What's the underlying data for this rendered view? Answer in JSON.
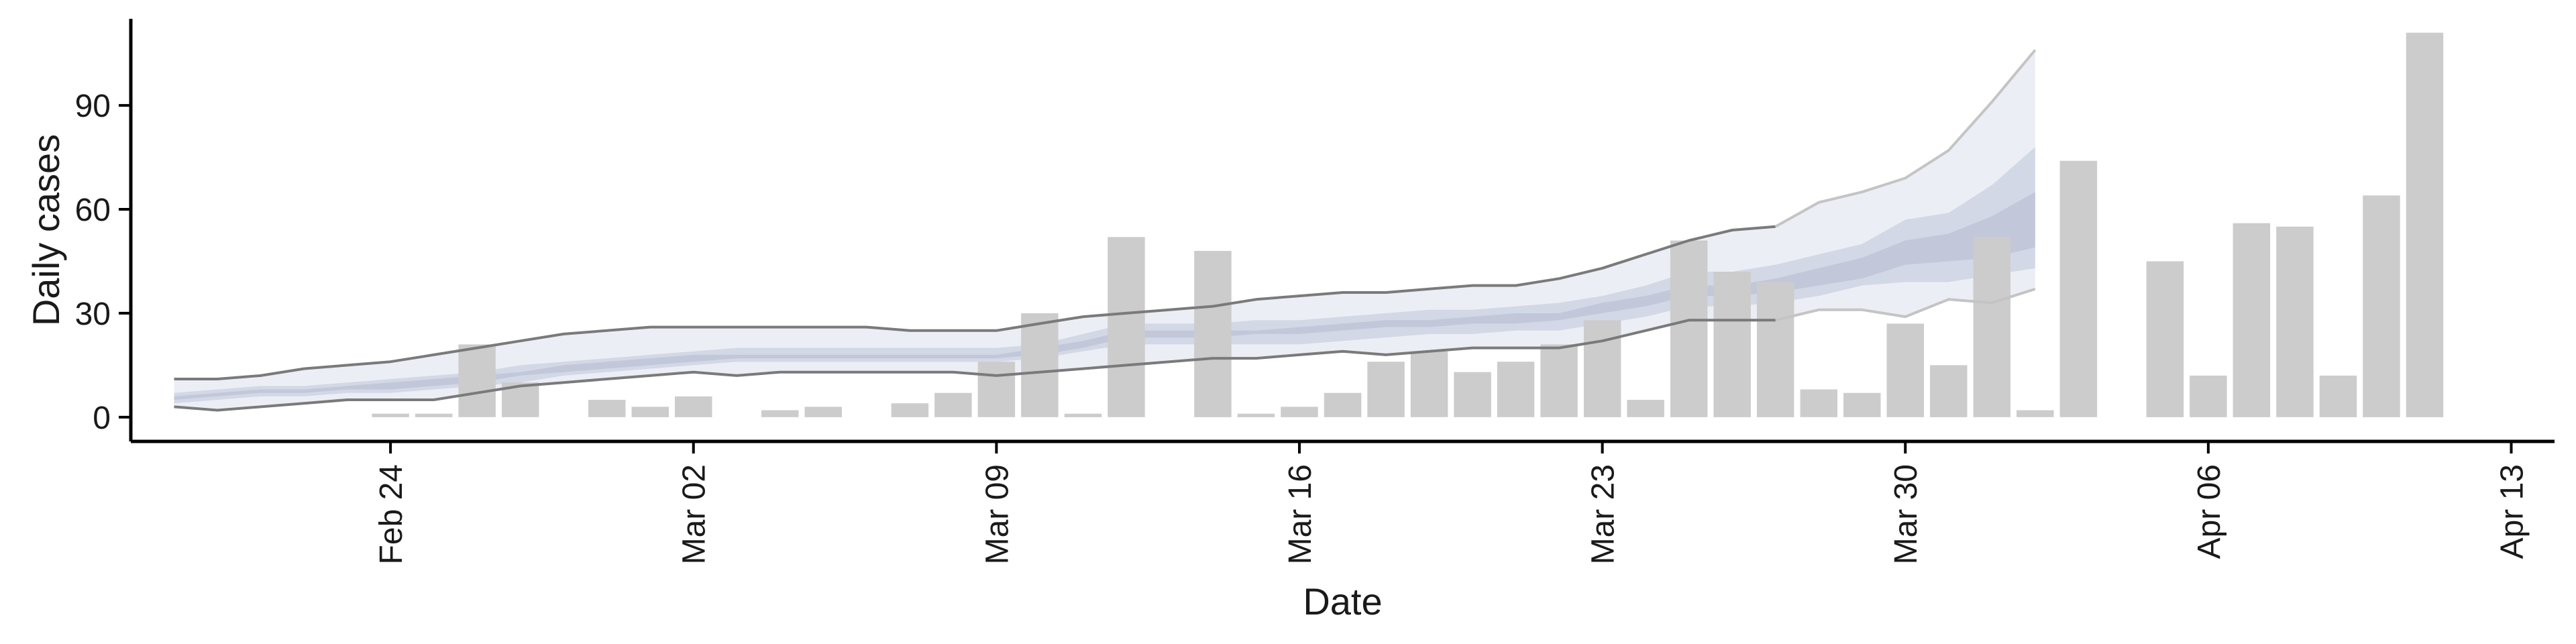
{
  "chart_data": {
    "type": "bar",
    "title": "",
    "xlabel": "Date",
    "ylabel": "Daily cases",
    "x_axis": {
      "start": "2020-02-18",
      "end": "2020-04-14",
      "ticks": [
        {
          "date": "2020-02-24",
          "label": "Feb 24"
        },
        {
          "date": "2020-03-02",
          "label": "Mar 02"
        },
        {
          "date": "2020-03-09",
          "label": "Mar 09"
        },
        {
          "date": "2020-03-16",
          "label": "Mar 16"
        },
        {
          "date": "2020-03-23",
          "label": "Mar 23"
        },
        {
          "date": "2020-03-30",
          "label": "Mar 30"
        },
        {
          "date": "2020-04-06",
          "label": "Apr 06"
        },
        {
          "date": "2020-04-13",
          "label": "Apr 13"
        }
      ]
    },
    "y_axis": {
      "ylim": [
        -7,
        115
      ],
      "ticks": [
        0,
        30,
        60,
        90
      ]
    },
    "grid": false,
    "series": [
      {
        "kind": "bar",
        "color": "#cccccc",
        "x": [
          "2020-02-24",
          "2020-02-25",
          "2020-02-26",
          "2020-02-27",
          "2020-02-29",
          "2020-03-01",
          "2020-03-02",
          "2020-03-04",
          "2020-03-05",
          "2020-03-07",
          "2020-03-08",
          "2020-03-09",
          "2020-03-10",
          "2020-03-11",
          "2020-03-12",
          "2020-03-14",
          "2020-03-15",
          "2020-03-16",
          "2020-03-17",
          "2020-03-18",
          "2020-03-19",
          "2020-03-20",
          "2020-03-21",
          "2020-03-22",
          "2020-03-23",
          "2020-03-24",
          "2020-03-25",
          "2020-03-26",
          "2020-03-27",
          "2020-03-28",
          "2020-03-29",
          "2020-03-30",
          "2020-03-31",
          "2020-04-01",
          "2020-04-02",
          "2020-04-03",
          "2020-04-05",
          "2020-04-06",
          "2020-04-07",
          "2020-04-08",
          "2020-04-09",
          "2020-04-10",
          "2020-04-11"
        ],
        "y": [
          1,
          1,
          21,
          10,
          5,
          3,
          6,
          2,
          3,
          4,
          7,
          16,
          30,
          1,
          52,
          48,
          1,
          3,
          7,
          16,
          19,
          13,
          16,
          21,
          28,
          5,
          51,
          42,
          39,
          8,
          7,
          27,
          15,
          52,
          2,
          74,
          45,
          12,
          56,
          55,
          12,
          64,
          111
        ]
      },
      {
        "kind": "band",
        "color": "#eceef5",
        "x": [
          "2020-02-19",
          "2020-02-20",
          "2020-02-21",
          "2020-02-22",
          "2020-02-23",
          "2020-02-24",
          "2020-02-25",
          "2020-02-26",
          "2020-02-27",
          "2020-02-28",
          "2020-02-29",
          "2020-03-01",
          "2020-03-02",
          "2020-03-03",
          "2020-03-04",
          "2020-03-05",
          "2020-03-06",
          "2020-03-07",
          "2020-03-08",
          "2020-03-09",
          "2020-03-10",
          "2020-03-11",
          "2020-03-12",
          "2020-03-13",
          "2020-03-14",
          "2020-03-15",
          "2020-03-16",
          "2020-03-17",
          "2020-03-18",
          "2020-03-19",
          "2020-03-20",
          "2020-03-21",
          "2020-03-22",
          "2020-03-23",
          "2020-03-24",
          "2020-03-25",
          "2020-03-26",
          "2020-03-27",
          "2020-03-28",
          "2020-03-29",
          "2020-03-30",
          "2020-03-31",
          "2020-04-01",
          "2020-04-02"
        ],
        "lower": [
          3,
          2,
          3,
          4,
          5,
          5,
          5,
          7,
          9,
          10,
          11,
          12,
          13,
          12,
          13,
          13,
          13,
          13,
          13,
          12,
          13,
          14,
          15,
          16,
          17,
          17,
          18,
          19,
          18,
          19,
          20,
          20,
          20,
          22,
          25,
          28,
          28,
          28,
          31,
          31,
          29,
          34,
          33,
          37
        ],
        "upper": [
          11,
          11,
          12,
          14,
          15,
          16,
          18,
          20,
          22,
          24,
          25,
          26,
          26,
          26,
          26,
          26,
          26,
          25,
          25,
          25,
          27,
          29,
          30,
          31,
          32,
          34,
          35,
          36,
          36,
          37,
          38,
          38,
          40,
          43,
          47,
          51,
          54,
          55,
          62,
          65,
          69,
          77,
          91,
          106
        ]
      },
      {
        "kind": "band",
        "color": "#d3d8e6",
        "x": [
          "2020-02-19",
          "2020-02-20",
          "2020-02-21",
          "2020-02-22",
          "2020-02-23",
          "2020-02-24",
          "2020-02-25",
          "2020-02-26",
          "2020-02-27",
          "2020-02-28",
          "2020-02-29",
          "2020-03-01",
          "2020-03-02",
          "2020-03-03",
          "2020-03-04",
          "2020-03-05",
          "2020-03-06",
          "2020-03-07",
          "2020-03-08",
          "2020-03-09",
          "2020-03-10",
          "2020-03-11",
          "2020-03-12",
          "2020-03-13",
          "2020-03-14",
          "2020-03-15",
          "2020-03-16",
          "2020-03-17",
          "2020-03-18",
          "2020-03-19",
          "2020-03-20",
          "2020-03-21",
          "2020-03-22",
          "2020-03-23",
          "2020-03-24",
          "2020-03-25",
          "2020-03-26",
          "2020-03-27",
          "2020-03-28",
          "2020-03-29",
          "2020-03-30",
          "2020-03-31",
          "2020-04-01",
          "2020-04-02"
        ],
        "lower": [
          4,
          5,
          6,
          6,
          7,
          7,
          8,
          9,
          10,
          12,
          13,
          14,
          15,
          16,
          16,
          16,
          16,
          16,
          16,
          16,
          17,
          19,
          21,
          21,
          21,
          21,
          21,
          22,
          23,
          24,
          24,
          25,
          25,
          27,
          29,
          32,
          32,
          33,
          35,
          38,
          39,
          39,
          41,
          43
        ],
        "upper": [
          7,
          8,
          9,
          9,
          10,
          11,
          12,
          13,
          15,
          16,
          17,
          18,
          19,
          20,
          20,
          20,
          20,
          20,
          20,
          20,
          21,
          24,
          27,
          27,
          27,
          28,
          28,
          29,
          30,
          31,
          31,
          32,
          33,
          35,
          38,
          42,
          42,
          44,
          47,
          50,
          57,
          59,
          67,
          78
        ]
      },
      {
        "kind": "band",
        "color": "#c2c8da",
        "x": [
          "2020-02-19",
          "2020-02-20",
          "2020-02-21",
          "2020-02-22",
          "2020-02-23",
          "2020-02-24",
          "2020-02-25",
          "2020-02-26",
          "2020-02-27",
          "2020-02-28",
          "2020-02-29",
          "2020-03-01",
          "2020-03-02",
          "2020-03-03",
          "2020-03-04",
          "2020-03-05",
          "2020-03-06",
          "2020-03-07",
          "2020-03-08",
          "2020-03-09",
          "2020-03-10",
          "2020-03-11",
          "2020-03-12",
          "2020-03-13",
          "2020-03-14",
          "2020-03-15",
          "2020-03-16",
          "2020-03-17",
          "2020-03-18",
          "2020-03-19",
          "2020-03-20",
          "2020-03-21",
          "2020-03-22",
          "2020-03-23",
          "2020-03-24",
          "2020-03-25",
          "2020-03-26",
          "2020-03-27",
          "2020-03-28",
          "2020-03-29",
          "2020-03-30",
          "2020-03-31",
          "2020-04-01",
          "2020-04-02"
        ],
        "lower": [
          5,
          6,
          7,
          7,
          8,
          8,
          9,
          10,
          12,
          13,
          14,
          15,
          16,
          17,
          17,
          17,
          17,
          17,
          17,
          17,
          18,
          20,
          23,
          23,
          23,
          24,
          24,
          25,
          26,
          26,
          27,
          27,
          28,
          30,
          32,
          35,
          35,
          36,
          38,
          40,
          44,
          45,
          46,
          49
        ],
        "upper": [
          6,
          7,
          8,
          8,
          9,
          10,
          11,
          12,
          13,
          15,
          16,
          17,
          18,
          18,
          18,
          18,
          18,
          18,
          18,
          18,
          20,
          22,
          25,
          25,
          25,
          25,
          26,
          27,
          28,
          28,
          29,
          30,
          30,
          33,
          35,
          38,
          38,
          40,
          43,
          46,
          51,
          53,
          58,
          65
        ]
      },
      {
        "kind": "line",
        "color": "#7a7a7a",
        "x": [
          "2020-02-19",
          "2020-02-20",
          "2020-02-21",
          "2020-02-22",
          "2020-02-23",
          "2020-02-24",
          "2020-02-25",
          "2020-02-26",
          "2020-02-27",
          "2020-02-28",
          "2020-02-29",
          "2020-03-01",
          "2020-03-02",
          "2020-03-03",
          "2020-03-04",
          "2020-03-05",
          "2020-03-06",
          "2020-03-07",
          "2020-03-08",
          "2020-03-09",
          "2020-03-10",
          "2020-03-11",
          "2020-03-12",
          "2020-03-13",
          "2020-03-14",
          "2020-03-15",
          "2020-03-16",
          "2020-03-17",
          "2020-03-18",
          "2020-03-19",
          "2020-03-20",
          "2020-03-21",
          "2020-03-22",
          "2020-03-23",
          "2020-03-24",
          "2020-03-25",
          "2020-03-26",
          "2020-03-27"
        ],
        "y": [
          11,
          11,
          12,
          14,
          15,
          16,
          18,
          20,
          22,
          24,
          25,
          26,
          26,
          26,
          26,
          26,
          26,
          25,
          25,
          25,
          27,
          29,
          30,
          31,
          32,
          34,
          35,
          36,
          36,
          37,
          38,
          38,
          40,
          43,
          47,
          51,
          54,
          55
        ]
      },
      {
        "kind": "line",
        "color": "#7a7a7a",
        "x": [
          "2020-02-19",
          "2020-02-20",
          "2020-02-21",
          "2020-02-22",
          "2020-02-23",
          "2020-02-24",
          "2020-02-25",
          "2020-02-26",
          "2020-02-27",
          "2020-02-28",
          "2020-02-29",
          "2020-03-01",
          "2020-03-02",
          "2020-03-03",
          "2020-03-04",
          "2020-03-05",
          "2020-03-06",
          "2020-03-07",
          "2020-03-08",
          "2020-03-09",
          "2020-03-10",
          "2020-03-11",
          "2020-03-12",
          "2020-03-13",
          "2020-03-14",
          "2020-03-15",
          "2020-03-16",
          "2020-03-17",
          "2020-03-18",
          "2020-03-19",
          "2020-03-20",
          "2020-03-21",
          "2020-03-22",
          "2020-03-23",
          "2020-03-24",
          "2020-03-25",
          "2020-03-26",
          "2020-03-27"
        ],
        "y": [
          3,
          2,
          3,
          4,
          5,
          5,
          5,
          7,
          9,
          10,
          11,
          12,
          13,
          12,
          13,
          13,
          13,
          13,
          13,
          12,
          13,
          14,
          15,
          16,
          17,
          17,
          18,
          19,
          18,
          19,
          20,
          20,
          20,
          22,
          25,
          28,
          28,
          28
        ]
      },
      {
        "kind": "line",
        "color": "#c4c4c4",
        "x": [
          "2020-03-27",
          "2020-03-28",
          "2020-03-29",
          "2020-03-30",
          "2020-03-31",
          "2020-04-01",
          "2020-04-02"
        ],
        "y": [
          55,
          62,
          65,
          69,
          77,
          91,
          106
        ]
      },
      {
        "kind": "line",
        "color": "#c4c4c4",
        "x": [
          "2020-03-27",
          "2020-03-28",
          "2020-03-29",
          "2020-03-30",
          "2020-03-31",
          "2020-04-01",
          "2020-04-02"
        ],
        "y": [
          28,
          31,
          31,
          29,
          34,
          33,
          37
        ]
      }
    ]
  }
}
